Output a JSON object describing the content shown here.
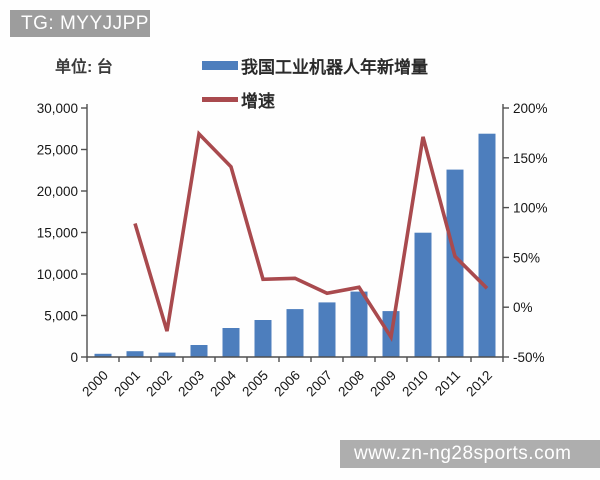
{
  "header": {
    "watermark": "TG: MYYJJPP"
  },
  "footer": {
    "watermark": "www.zn-ng28sports.com"
  },
  "colors": {
    "bar": "#4d7ebd",
    "line": "#a94a4e",
    "axis": "#4f4f4f",
    "badge_header_bg": "#9d9d9d",
    "badge_footer_bg": "#aeaeae",
    "badge_text": "#ffffff"
  },
  "chart_data": {
    "type": "bar",
    "subtype": "combo-bar-line",
    "title": "",
    "unit_label": "单位: 台",
    "categories": [
      "2000",
      "2001",
      "2002",
      "2003",
      "2004",
      "2005",
      "2006",
      "2007",
      "2008",
      "2009",
      "2010",
      "2011",
      "2012"
    ],
    "series": [
      {
        "name": "我国工业机器人年新增量",
        "type": "bar",
        "axis": "left",
        "color": "#4d7ebd",
        "values": [
          380,
          700,
          530,
          1451,
          3493,
          4461,
          5770,
          6581,
          7879,
          5525,
          14978,
          22577,
          26902
        ]
      },
      {
        "name": "增速",
        "type": "line",
        "axis": "right",
        "color": "#a94a4e",
        "values": [
          null,
          84,
          -24,
          174,
          141,
          28,
          29,
          14,
          20,
          -30,
          171,
          51,
          19
        ]
      }
    ],
    "left_axis": {
      "min": 0,
      "max": 30000,
      "tick_labels": [
        "0",
        "5,000",
        "10,000",
        "15,000",
        "20,000",
        "25,000",
        "30,000"
      ]
    },
    "right_axis": {
      "min": -50,
      "max": 200,
      "tick_labels": [
        "-50%",
        "0%",
        "50%",
        "100%",
        "150%",
        "200%"
      ]
    },
    "grid": false,
    "legend_position": "top"
  }
}
